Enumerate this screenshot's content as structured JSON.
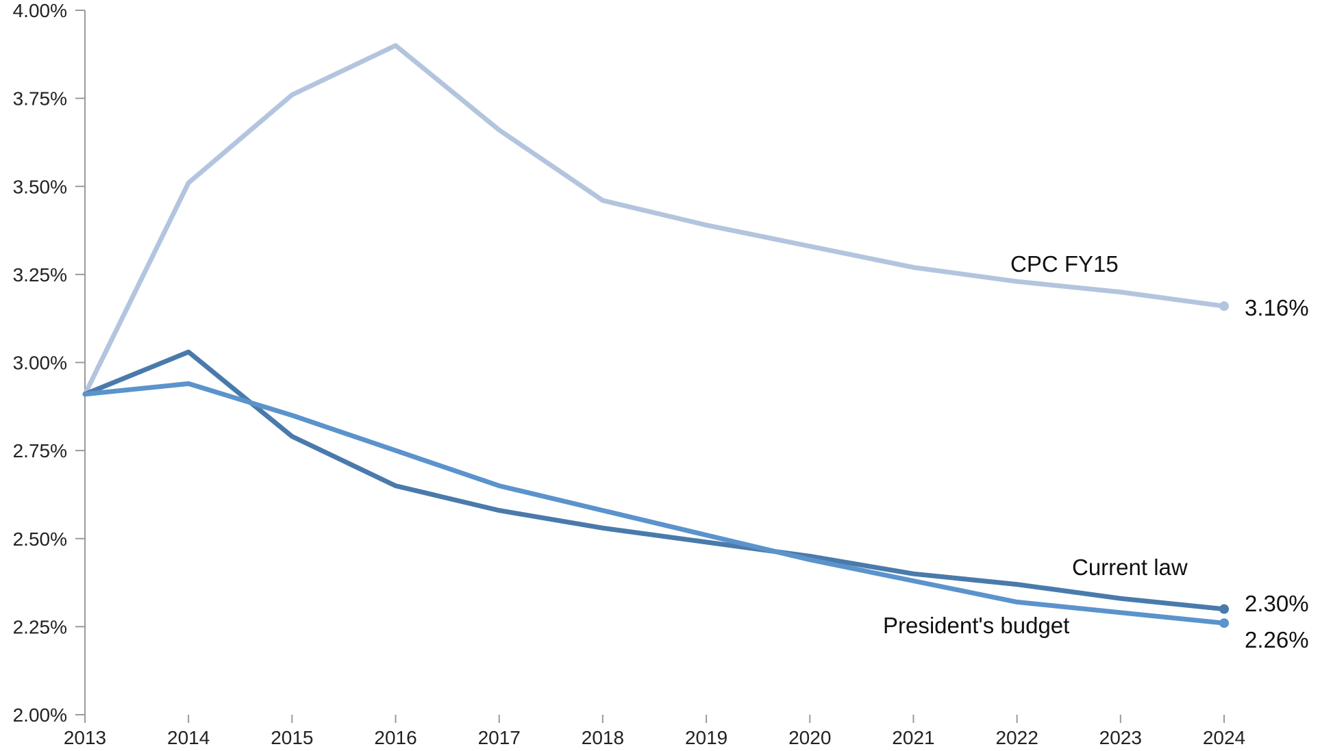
{
  "chart_data": {
    "type": "line",
    "title": "",
    "xlabel": "",
    "ylabel": "",
    "x": [
      2013,
      2014,
      2015,
      2016,
      2017,
      2018,
      2019,
      2020,
      2021,
      2022,
      2023,
      2024
    ],
    "ylim": [
      2.0,
      4.0
    ],
    "y_ticks": [
      2.0,
      2.25,
      2.5,
      2.75,
      3.0,
      3.25,
      3.5,
      3.75,
      4.0
    ],
    "y_tick_labels": [
      "2.00%",
      "2.25%",
      "2.50%",
      "2.75%",
      "3.00%",
      "3.25%",
      "3.50%",
      "3.75%",
      "4.00%"
    ],
    "x_tick_labels": [
      "2013",
      "2014",
      "2015",
      "2016",
      "2017",
      "2018",
      "2019",
      "2020",
      "2021",
      "2022",
      "2023",
      "2024"
    ],
    "grid": false,
    "legend": "none",
    "series": [
      {
        "name": "CPC FY15",
        "color": "#b3c5de",
        "values": [
          2.91,
          3.51,
          3.76,
          3.9,
          3.66,
          3.46,
          3.39,
          3.33,
          3.27,
          3.23,
          3.2,
          3.16
        ],
        "end_label": "3.16%"
      },
      {
        "name": "Current law",
        "color": "#4a7aab",
        "values": [
          2.91,
          3.03,
          2.79,
          2.65,
          2.58,
          2.53,
          2.49,
          2.45,
          2.4,
          2.37,
          2.33,
          2.3
        ],
        "end_label": "2.30%"
      },
      {
        "name": "President's budget",
        "color": "#5b93cc",
        "values": [
          2.91,
          2.94,
          2.85,
          2.75,
          2.65,
          2.58,
          2.51,
          2.44,
          2.38,
          2.32,
          2.29,
          2.26
        ],
        "end_label": "2.26%"
      }
    ]
  }
}
